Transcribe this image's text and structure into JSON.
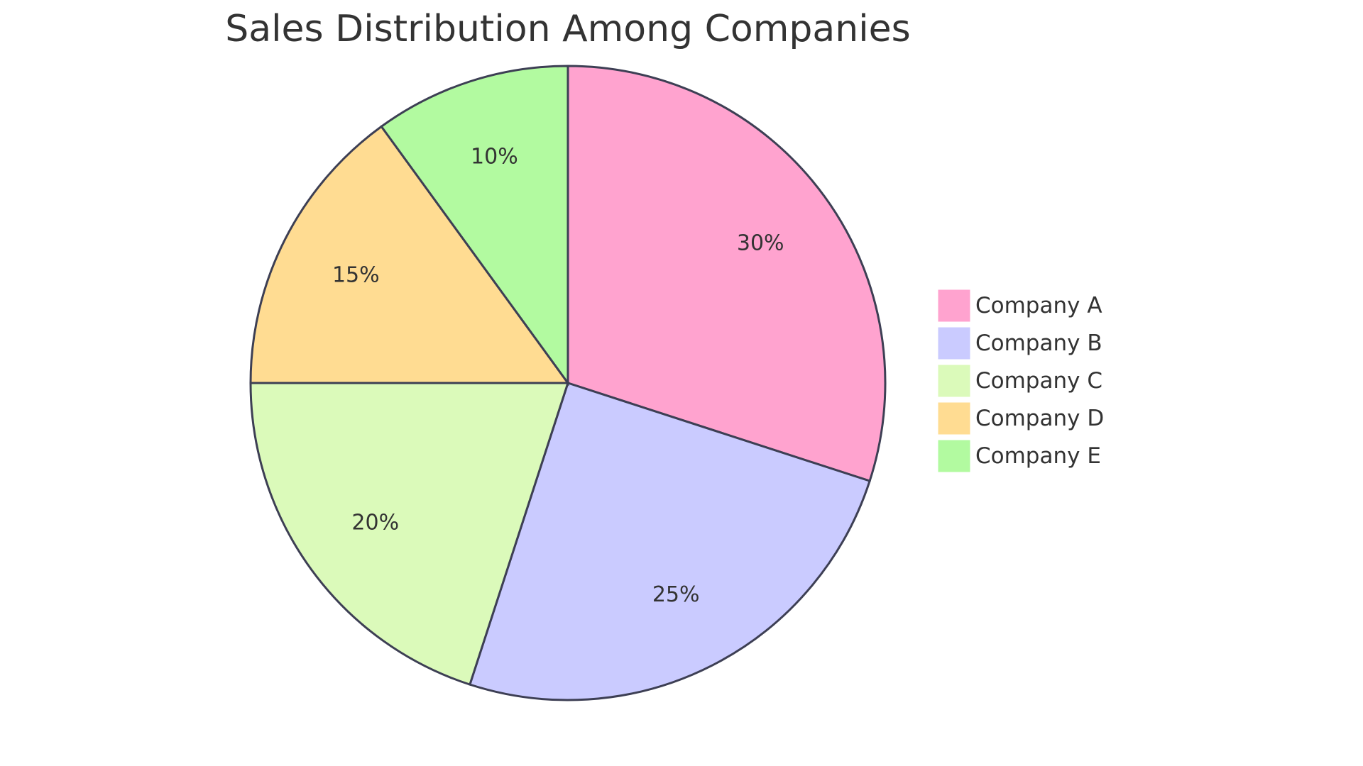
{
  "chart_data": {
    "type": "pie",
    "title": "Sales Distribution Among Companies",
    "legend_position": "right",
    "slices": [
      {
        "name": "Company A",
        "value": 30,
        "label": "30%",
        "color": "#FFA3CF"
      },
      {
        "name": "Company B",
        "value": 25,
        "label": "25%",
        "color": "#CACBFF"
      },
      {
        "name": "Company C",
        "value": 20,
        "label": "20%",
        "color": "#DBFABA"
      },
      {
        "name": "Company D",
        "value": 15,
        "label": "15%",
        "color": "#FFDC92"
      },
      {
        "name": "Company E",
        "value": 10,
        "label": "10%",
        "color": "#B2FAA0"
      }
    ]
  }
}
